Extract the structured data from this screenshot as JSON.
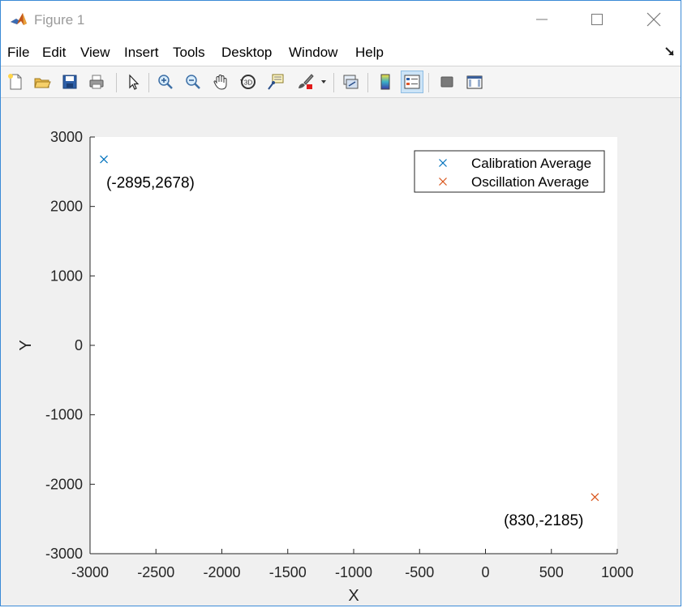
{
  "window": {
    "title": "Figure 1"
  },
  "menu": {
    "items": [
      "File",
      "Edit",
      "View",
      "Insert",
      "Tools",
      "Desktop",
      "Window",
      "Help"
    ]
  },
  "toolbar": {
    "buttons": [
      {
        "icon": "new-figure-icon"
      },
      {
        "icon": "open-file-icon"
      },
      {
        "icon": "save-icon"
      },
      {
        "icon": "print-icon"
      },
      {
        "icon": "edit-plot-cursor-icon"
      },
      {
        "icon": "zoom-in-icon"
      },
      {
        "icon": "zoom-out-icon"
      },
      {
        "icon": "pan-hand-icon"
      },
      {
        "icon": "rotate-3d-icon"
      },
      {
        "icon": "data-cursor-icon"
      },
      {
        "icon": "brush-icon"
      },
      {
        "icon": "link-plot-icon"
      },
      {
        "icon": "insert-colorbar-icon"
      },
      {
        "icon": "insert-legend-icon"
      },
      {
        "icon": "hide-plot-tools-icon"
      },
      {
        "icon": "show-plot-tools-icon"
      }
    ]
  },
  "chart_data": {
    "type": "scatter",
    "title": "",
    "xlabel": "X",
    "ylabel": "Y",
    "xlim": [
      -3000,
      1000
    ],
    "ylim": [
      -3000,
      3000
    ],
    "xticks": [
      -3000,
      -2500,
      -2000,
      -1500,
      -1000,
      -500,
      0,
      500,
      1000
    ],
    "yticks": [
      3000,
      2000,
      1000,
      0,
      -1000,
      -2000,
      -3000
    ],
    "xtick_labels": [
      "-3000",
      "-2500",
      "-2000",
      "-1500",
      "-1000",
      "-500",
      "0",
      "500",
      "1000"
    ],
    "ytick_labels": [
      "3000",
      "2000",
      "1000",
      "0",
      "-1000",
      "-2000",
      "-3000"
    ],
    "grid": false,
    "legend_position": "top-right",
    "series": [
      {
        "name": "Calibration Average",
        "marker": "x",
        "color": "#0072bd",
        "x": [
          -2895
        ],
        "y": [
          2678
        ]
      },
      {
        "name": "Oscillation Average",
        "marker": "x",
        "color": "#d95319",
        "x": [
          830
        ],
        "y": [
          -2185
        ]
      }
    ],
    "annotations": [
      {
        "text": "(-2895,2678)",
        "x": -2895,
        "y": 2678,
        "anchor": "below-right"
      },
      {
        "text": "(830,-2185)",
        "x": 830,
        "y": -2185,
        "anchor": "below-left"
      }
    ]
  }
}
